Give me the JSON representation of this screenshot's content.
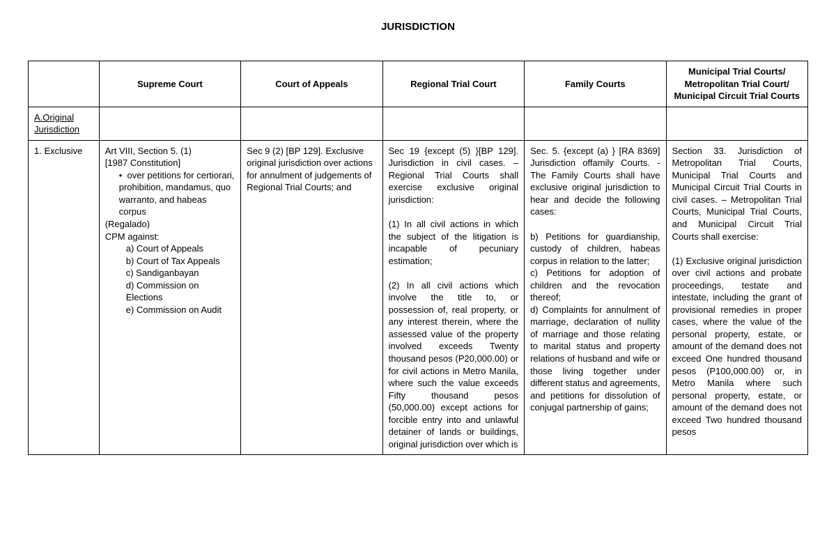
{
  "title": "JURISDICTION",
  "table": {
    "columns": [
      "",
      "Supreme Court",
      "Court of Appeals",
      "Regional Trial Court",
      "Family  Courts",
      "Municipal Trial  Courts/ Metropolitan Trial Court/ Municipal Circuit Trial Courts"
    ],
    "section_header": "A.Original Jurisdiction",
    "row_label": "1. Exclusive",
    "supreme_court": {
      "line1": "Art VIII, Section 5. (1)",
      "line2": "[1987 Constitution]",
      "bullet": "over petitions for certiorari, prohibition, mandamus, quo warranto, and habeas corpus",
      "line3": "(Regalado)",
      "line4": "CPM against:",
      "items": [
        "a)  Court of Appeals",
        "b)  Court of Tax Appeals",
        "c)  Sandiganbayan",
        "d)  Commission on Elections",
        "e)  Commission on Audit"
      ]
    },
    "court_of_appeals": "Sec 9 (2) [BP 129]. Exclusive original jurisdiction over actions for annulment of judgements of Regional Trial Courts; and",
    "regional_trial_court": {
      "p1": "Sec 19 {except (5) }[BP 129]. Jurisdiction in civil cases. – Regional Trial Courts shall exercise exclusive original jurisdiction:",
      "p2": "(1) In all civil actions in which the subject of the litigation is incapable of pecuniary estimation;",
      "p3": "(2) In all civil actions which involve the title to, or possession of, real property, or any interest therein, where the assessed value of the property involved exceeds Twenty thousand pesos (P20,000.00) or for civil actions in Metro Manila, where such the value exceeds Fifty thousand pesos (50,000.00) except actions for forcible entry into and unlawful detainer of lands or buildings, original jurisdiction over which is"
    },
    "family_courts": {
      "p1": "Sec. 5. {except (a) } [RA 8369] Jurisdiction offamily Courts. - The Family Courts shall have exclusive original jurisdiction to hear and decide the following cases:",
      "p2": "b) Petitions for guardianship, custody of children, habeas corpus in relation to the latter;",
      "p3": "c) Petitions for adoption of children and the revocation thereof;",
      "p4": "d) Complaints for annulment of marriage, declaration of nullity of marriage and those relating to marital status and property relations of husband and wife or those living together under different status and agreements, and petitions for dissolution of conjugal partnership of gains;"
    },
    "municipal": {
      "p1": "Section 33. Jurisdiction of Metropolitan Trial Courts, Municipal Trial Courts and Municipal Circuit Trial Courts in civil cases. – Metropolitan Trial Courts, Municipal Trial Courts, and Municipal Circuit Trial Courts shall exercise:",
      "p2": "(1) Exclusive original jurisdiction over civil actions and probate proceedings, testate and intestate, including the grant of provisional remedies in proper cases, where the value of the personal property, estate, or amount of the demand does not exceed One hundred thousand pesos (P100,000.00) or, in Metro Manila where such personal property, estate, or amount of the demand does not exceed Two hundred thousand pesos"
    }
  }
}
